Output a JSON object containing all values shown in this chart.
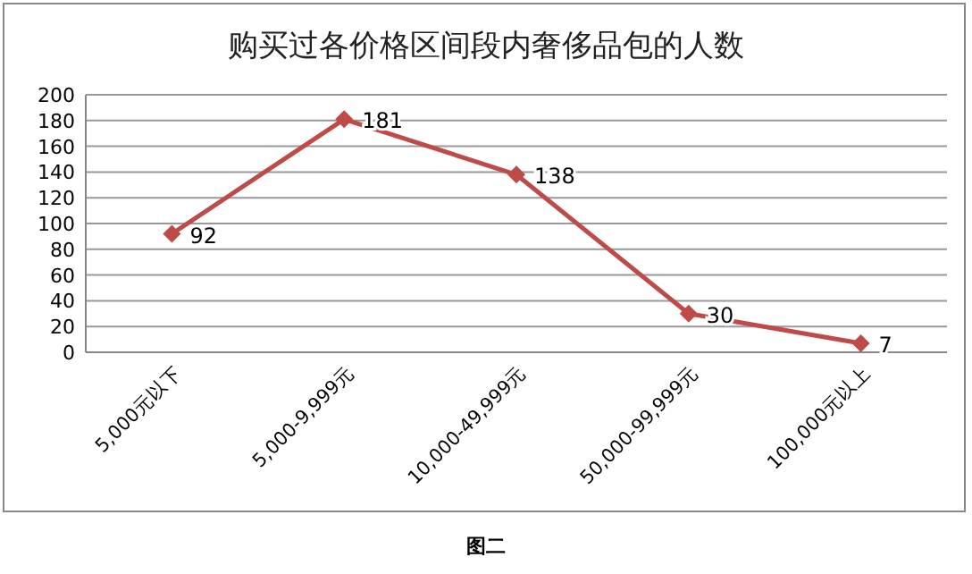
{
  "chart_data": {
    "type": "line",
    "title": "购买过各价格区间段内奢侈品包的人数",
    "categories": [
      "5,000元以下",
      "5,000-9,999元",
      "10,000-49,999元",
      "50,000-99,999元",
      "100,000元以上"
    ],
    "values": [
      92,
      181,
      138,
      30,
      7
    ],
    "color": "#be4b48",
    "marker": "diamond",
    "data_labels": true,
    "ylim": [
      0,
      200
    ],
    "yticks": [
      0,
      20,
      40,
      60,
      80,
      100,
      120,
      140,
      160,
      180,
      200
    ],
    "grid": "y",
    "annotations": [
      "图二"
    ]
  }
}
